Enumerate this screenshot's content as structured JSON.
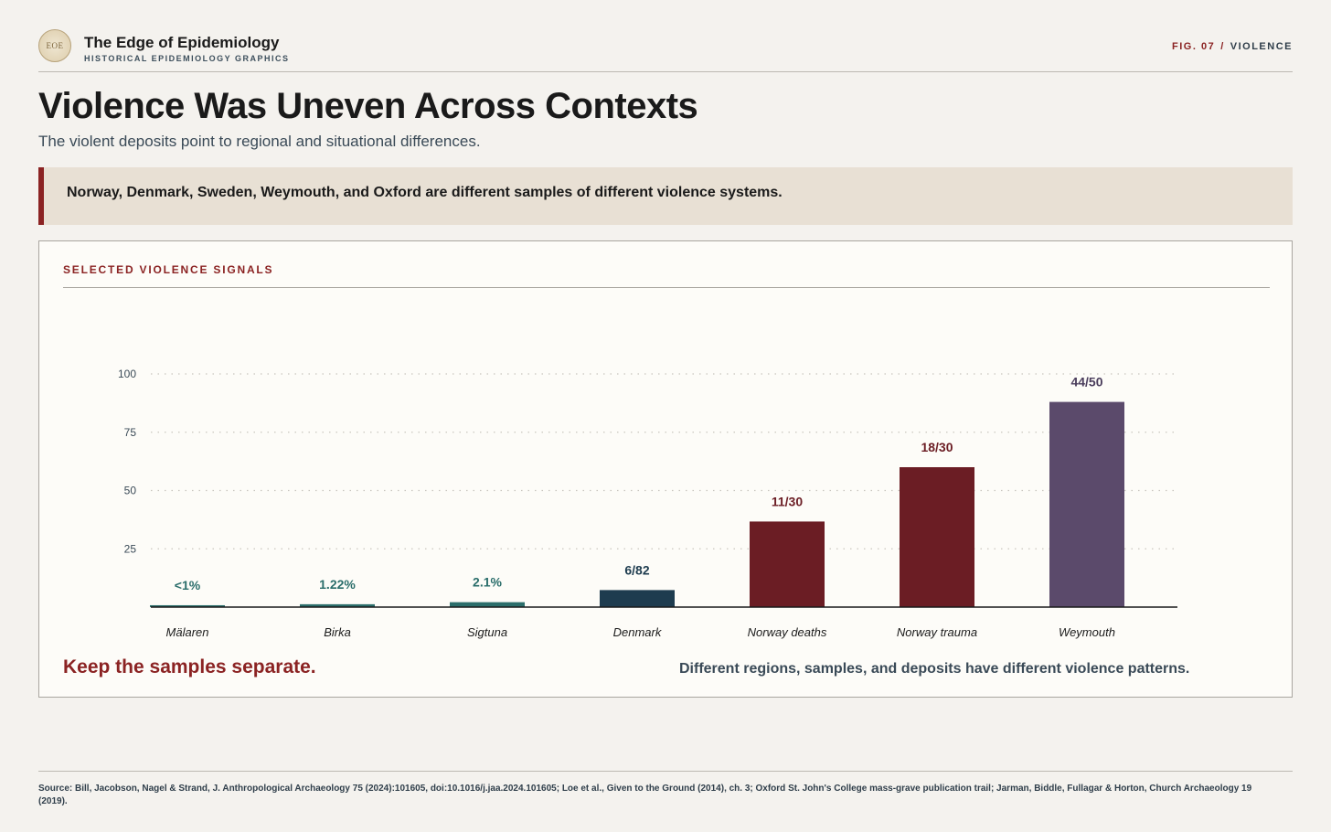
{
  "header": {
    "brand_title": "The Edge of Epidemiology",
    "brand_subtitle": "HISTORICAL EPIDEMIOLOGY GRAPHICS",
    "logo_text": "EOE",
    "fig_number": "FIG. 07",
    "fig_separator": "/",
    "fig_topic": "VIOLENCE"
  },
  "page": {
    "title": "Violence Was Uneven Across Contexts",
    "subtitle": "The violent deposits point to regional and situational differences.",
    "callout": "Norway, Denmark, Sweden, Weymouth, and Oxford are different samples of different violence systems."
  },
  "panel": {
    "label": "SELECTED VIOLENCE SIGNALS",
    "note_left": "Keep the samples separate.",
    "note_right": "Different regions, samples, and deposits have different violence patterns."
  },
  "chart_data": {
    "type": "bar",
    "categories": [
      "Mälaren",
      "Birka",
      "Sigtuna",
      "Denmark",
      "Norway deaths",
      "Norway trauma",
      "Weymouth"
    ],
    "values": [
      0.8,
      1.22,
      2.1,
      7.3,
      36.7,
      60,
      88
    ],
    "data_labels": [
      "<1%",
      "1.22%",
      "2.1%",
      "6/82",
      "11/30",
      "18/30",
      "44/50"
    ],
    "colors": [
      "#2b6e6b",
      "#2b6e6b",
      "#2b6e6b",
      "#1e3c4f",
      "#6b1d24",
      "#6b1d24",
      "#5b4a6b"
    ],
    "label_colors": [
      "#2b6e6b",
      "#2b6e6b",
      "#2b6e6b",
      "#1e3c4f",
      "#6b1d24",
      "#6b1d24",
      "#4a3d5c"
    ],
    "yticks": [
      25,
      50,
      75,
      100
    ],
    "ylim": [
      0,
      100
    ],
    "grid": true,
    "xlabel": "",
    "ylabel": ""
  },
  "footer": {
    "source": "Source: Bill, Jacobson, Nagel & Strand, J. Anthropological Archaeology 75 (2024):101605, doi:10.1016/j.jaa.2024.101605; Loe et al., Given to the Ground (2014), ch. 3; Oxford St. John's College mass-grave publication trail; Jarman, Biddle, Fullagar & Horton, Church Archaeology 19 (2019)."
  }
}
